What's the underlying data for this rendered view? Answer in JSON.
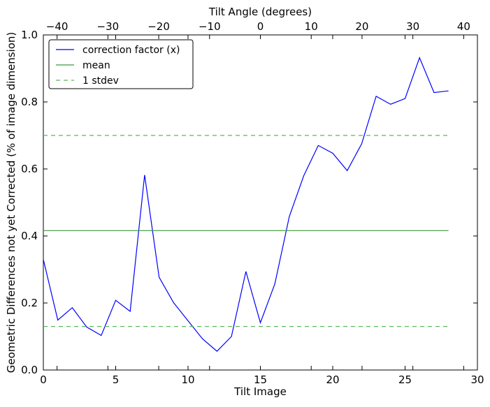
{
  "chart_data": {
    "type": "line",
    "xlabel": "Tilt Image",
    "ylabel": "Geometric Differences not yet Corrected (% of image dimension)",
    "top_xlabel": "Tilt Angle (degrees)",
    "xlim": [
      0,
      30
    ],
    "ylim": [
      0.0,
      1.0
    ],
    "top_xlim": [
      -42.7,
      42.7
    ],
    "xticks": [
      0,
      5,
      10,
      15,
      20,
      25,
      30
    ],
    "xtick_labels": [
      "0",
      "5",
      "10",
      "15",
      "20",
      "25",
      "30"
    ],
    "yticks": [
      0.0,
      0.2,
      0.4,
      0.6,
      0.8,
      1.0
    ],
    "ytick_labels": [
      "0.0",
      "0.2",
      "0.4",
      "0.6",
      "0.8",
      "1.0"
    ],
    "top_xticks": [
      -40,
      -30,
      -20,
      -10,
      0,
      10,
      20,
      30,
      40
    ],
    "top_xtick_labels": [
      "−40",
      "−30",
      "−20",
      "−10",
      "0",
      "10",
      "20",
      "30",
      "40"
    ],
    "grid": false,
    "legend_position": "top-left",
    "series": [
      {
        "name": "correction factor (x)",
        "style": "solid",
        "color": "#0000ff",
        "x": [
          0,
          1,
          2,
          3,
          4,
          5,
          6,
          7,
          8,
          9,
          10,
          11,
          12,
          13,
          14,
          15,
          16,
          17,
          18,
          19,
          20,
          21,
          22,
          23,
          24,
          25,
          26,
          27,
          28
        ],
        "values": [
          0.33,
          0.149,
          0.186,
          0.128,
          0.103,
          0.208,
          0.175,
          0.582,
          0.277,
          0.201,
          0.147,
          0.093,
          0.056,
          0.1,
          0.294,
          0.141,
          0.257,
          0.458,
          0.58,
          0.67,
          0.647,
          0.595,
          0.675,
          0.817,
          0.793,
          0.81,
          0.932,
          0.828,
          0.833
        ]
      },
      {
        "name": "mean",
        "style": "solid",
        "color": "#3a9a3a",
        "x": [
          0,
          28
        ],
        "values": [
          0.416,
          0.416
        ]
      },
      {
        "name": "1 stdev",
        "style": "dashed",
        "color": "#5cb85c",
        "x": [
          0,
          28
        ],
        "values": [
          0.7,
          0.7
        ]
      },
      {
        "name": "",
        "style": "dashed",
        "color": "#5cb85c",
        "x": [
          0,
          28
        ],
        "values": [
          0.13,
          0.13
        ]
      }
    ],
    "legend": [
      "correction factor (x)",
      "mean",
      "1 stdev"
    ]
  }
}
